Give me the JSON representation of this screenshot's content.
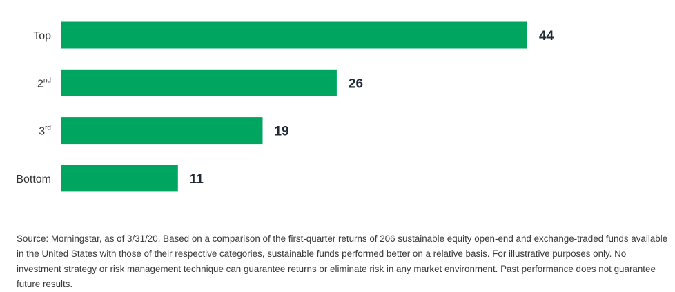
{
  "chart_data": {
    "type": "bar",
    "orientation": "horizontal",
    "categories": [
      {
        "base": "Top",
        "sup": ""
      },
      {
        "base": "2",
        "sup": "nd"
      },
      {
        "base": "3",
        "sup": "rd"
      },
      {
        "base": "Bottom",
        "sup": ""
      }
    ],
    "values": [
      44,
      26,
      19,
      11
    ],
    "title": "",
    "xlabel": "",
    "ylabel": "",
    "xlim": [
      0,
      44
    ],
    "grid": false,
    "legend": "none",
    "bar_color": "#00a660"
  },
  "footnote": "Source: Morningstar, as of 3/31/20. Based on a comparison of the first-quarter returns of 206 sustainable equity open-end and exchange-traded funds available in the United States with those of their respective categories, sustainable funds performed better on a relative basis. For illustrative purposes only. No investment strategy or risk management technique can guarantee returns or eliminate risk in any market environment. Past performance does not guarantee future results."
}
